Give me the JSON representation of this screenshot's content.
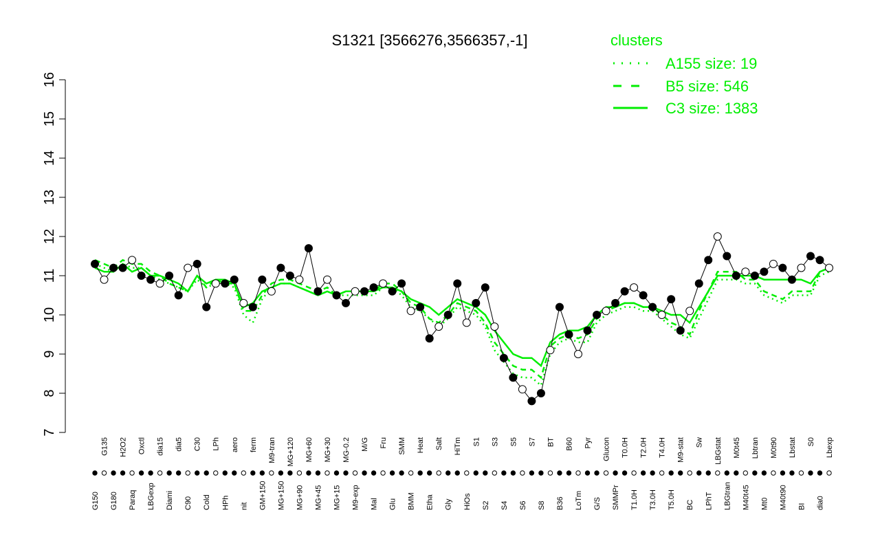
{
  "chart_data": {
    "type": "line",
    "title": "S1321 [3566276,3566357,-1]",
    "ylim": [
      7,
      16
    ],
    "y_ticks": [
      7,
      8,
      9,
      10,
      11,
      12,
      13,
      14,
      15,
      16
    ],
    "x_labels_top": [
      "G150",
      "G135",
      "G180",
      "H2O2",
      "Paraq",
      "Oxctl",
      "LBGexp",
      "dia15",
      "Diami",
      "dia5",
      "C90",
      "C30",
      "Cold",
      "LPh",
      "HPh",
      "aero",
      "nit",
      "ferm",
      "GM+150",
      "M9-tran",
      "MG+150",
      "MG+120",
      "MG+90",
      "MG+60",
      "MG+45",
      "MG+30",
      "MG+15",
      "MG-0.2",
      "M9-exp",
      "M/G",
      "Mal",
      "Fru",
      "Glu",
      "SMM",
      "BMM",
      "Heat",
      "Etha",
      "Salt",
      "Gly",
      "HiTm",
      "HiOs",
      "S1",
      "S2",
      "S3",
      "S4",
      "S5",
      "S6",
      "S7",
      "S8",
      "BT",
      "B36",
      "B60",
      "LoTm",
      "Pyr",
      "G/S",
      "Glucon",
      "SMMPr",
      "T0.0H",
      "T1.0H",
      "T2.0H",
      "T3.0H",
      "T4.0H",
      "T5.0H",
      "M9-stat",
      "BC",
      "Sw",
      "LPhT",
      "LBGstat",
      "LBGtran",
      "M0t45",
      "M40t45",
      "Lbtran",
      "Mt0",
      "M0t90",
      "M40t90",
      "Lbstat",
      "BI",
      "S0",
      "dia0",
      "Lbexp"
    ],
    "series": [
      {
        "name": "C3 size: 1383",
        "style": "solid",
        "color": "#00ee00",
        "values": [
          11.2,
          11.1,
          11.1,
          11.3,
          11.1,
          11.2,
          11.0,
          11.0,
          10.9,
          10.8,
          10.6,
          11.0,
          10.8,
          10.9,
          10.9,
          10.8,
          10.2,
          10.3,
          10.6,
          10.7,
          10.8,
          10.8,
          10.7,
          10.6,
          10.5,
          10.6,
          10.5,
          10.6,
          10.6,
          10.6,
          10.6,
          10.7,
          10.7,
          10.6,
          10.4,
          10.3,
          10.2,
          10.0,
          10.2,
          10.4,
          10.3,
          10.2,
          10.0,
          9.6,
          9.3,
          9.0,
          8.9,
          8.9,
          8.7,
          9.3,
          9.5,
          9.6,
          9.6,
          9.7,
          10.0,
          10.2,
          10.2,
          10.3,
          10.3,
          10.2,
          10.2,
          10.1,
          10.0,
          10.0,
          9.8,
          10.2,
          10.6,
          11.0,
          11.0,
          11.0,
          11.0,
          11.0,
          10.9,
          10.9,
          10.9,
          10.9,
          10.9,
          10.8,
          11.1,
          11.2
        ]
      },
      {
        "name": "B5 size: 546",
        "style": "dashed",
        "color": "#00ee00",
        "values": [
          11.4,
          11.3,
          11.2,
          11.4,
          11.3,
          11.3,
          11.1,
          11.0,
          10.8,
          10.7,
          10.6,
          11.0,
          10.7,
          10.9,
          10.8,
          10.8,
          10.1,
          10.1,
          10.5,
          10.8,
          10.9,
          10.9,
          10.8,
          10.7,
          10.6,
          10.7,
          10.5,
          10.6,
          10.6,
          10.6,
          10.6,
          10.8,
          10.8,
          10.6,
          10.3,
          10.2,
          9.9,
          9.8,
          10.0,
          10.3,
          10.2,
          10.1,
          9.8,
          9.3,
          9.0,
          8.7,
          8.6,
          8.6,
          8.4,
          9.2,
          9.4,
          9.5,
          9.4,
          9.5,
          9.9,
          10.1,
          10.2,
          10.3,
          10.3,
          10.2,
          10.2,
          10.0,
          9.8,
          9.7,
          9.5,
          10.1,
          10.6,
          11.1,
          11.1,
          11.1,
          10.9,
          10.9,
          10.6,
          10.5,
          10.4,
          10.6,
          10.6,
          10.6,
          11.1,
          11.2
        ]
      },
      {
        "name": "A155 size: 19",
        "style": "dotted",
        "color": "#00ee00",
        "values": [
          11.3,
          11.2,
          11.1,
          11.3,
          11.2,
          11.2,
          11.0,
          10.9,
          10.8,
          10.7,
          10.6,
          10.9,
          10.7,
          10.8,
          10.8,
          10.7,
          10.0,
          9.8,
          10.4,
          10.7,
          10.8,
          10.8,
          10.7,
          10.6,
          10.5,
          10.6,
          10.5,
          10.5,
          10.5,
          10.5,
          10.5,
          10.7,
          10.7,
          10.5,
          10.2,
          10.1,
          9.9,
          9.7,
          9.9,
          10.2,
          10.1,
          10.0,
          9.7,
          9.1,
          8.8,
          8.5,
          8.4,
          8.4,
          8.2,
          9.0,
          9.3,
          9.4,
          9.3,
          9.3,
          9.8,
          10.0,
          10.1,
          10.2,
          10.2,
          10.1,
          10.1,
          9.9,
          9.7,
          9.5,
          9.4,
          9.9,
          10.4,
          10.9,
          10.9,
          10.9,
          10.8,
          10.8,
          10.5,
          10.4,
          10.3,
          10.5,
          10.5,
          10.5,
          11.0,
          11.1
        ]
      },
      {
        "name": "S1321",
        "style": "points",
        "color": "#000000",
        "values": [
          11.3,
          10.9,
          11.2,
          11.2,
          11.4,
          11.0,
          10.9,
          10.8,
          11.0,
          10.5,
          11.2,
          11.3,
          10.2,
          10.8,
          10.8,
          10.9,
          10.3,
          10.2,
          10.9,
          10.6,
          11.2,
          11.0,
          10.9,
          11.7,
          10.6,
          10.9,
          10.5,
          10.3,
          10.6,
          10.6,
          10.7,
          10.8,
          10.6,
          10.8,
          10.1,
          10.2,
          9.4,
          9.7,
          10.0,
          10.8,
          9.8,
          10.3,
          10.7,
          9.7,
          8.9,
          8.4,
          8.1,
          7.8,
          8.0,
          9.1,
          10.2,
          9.5,
          9.0,
          9.6,
          10.0,
          10.1,
          10.3,
          10.6,
          10.7,
          10.5,
          10.2,
          10.0,
          10.4,
          9.6,
          10.1,
          10.8,
          11.4,
          12.0,
          11.5,
          11.0,
          11.1,
          11.0,
          11.1,
          11.3,
          11.2,
          10.9,
          11.2,
          11.5,
          11.4,
          11.2
        ]
      }
    ],
    "legend": {
      "title": "clusters",
      "position": "top-right",
      "entries": [
        {
          "label": "A155 size: 19",
          "style": "dotted"
        },
        {
          "label": "B5 size: 546",
          "style": "dashed"
        },
        {
          "label": "C3 size: 1383",
          "style": "solid"
        }
      ]
    }
  }
}
